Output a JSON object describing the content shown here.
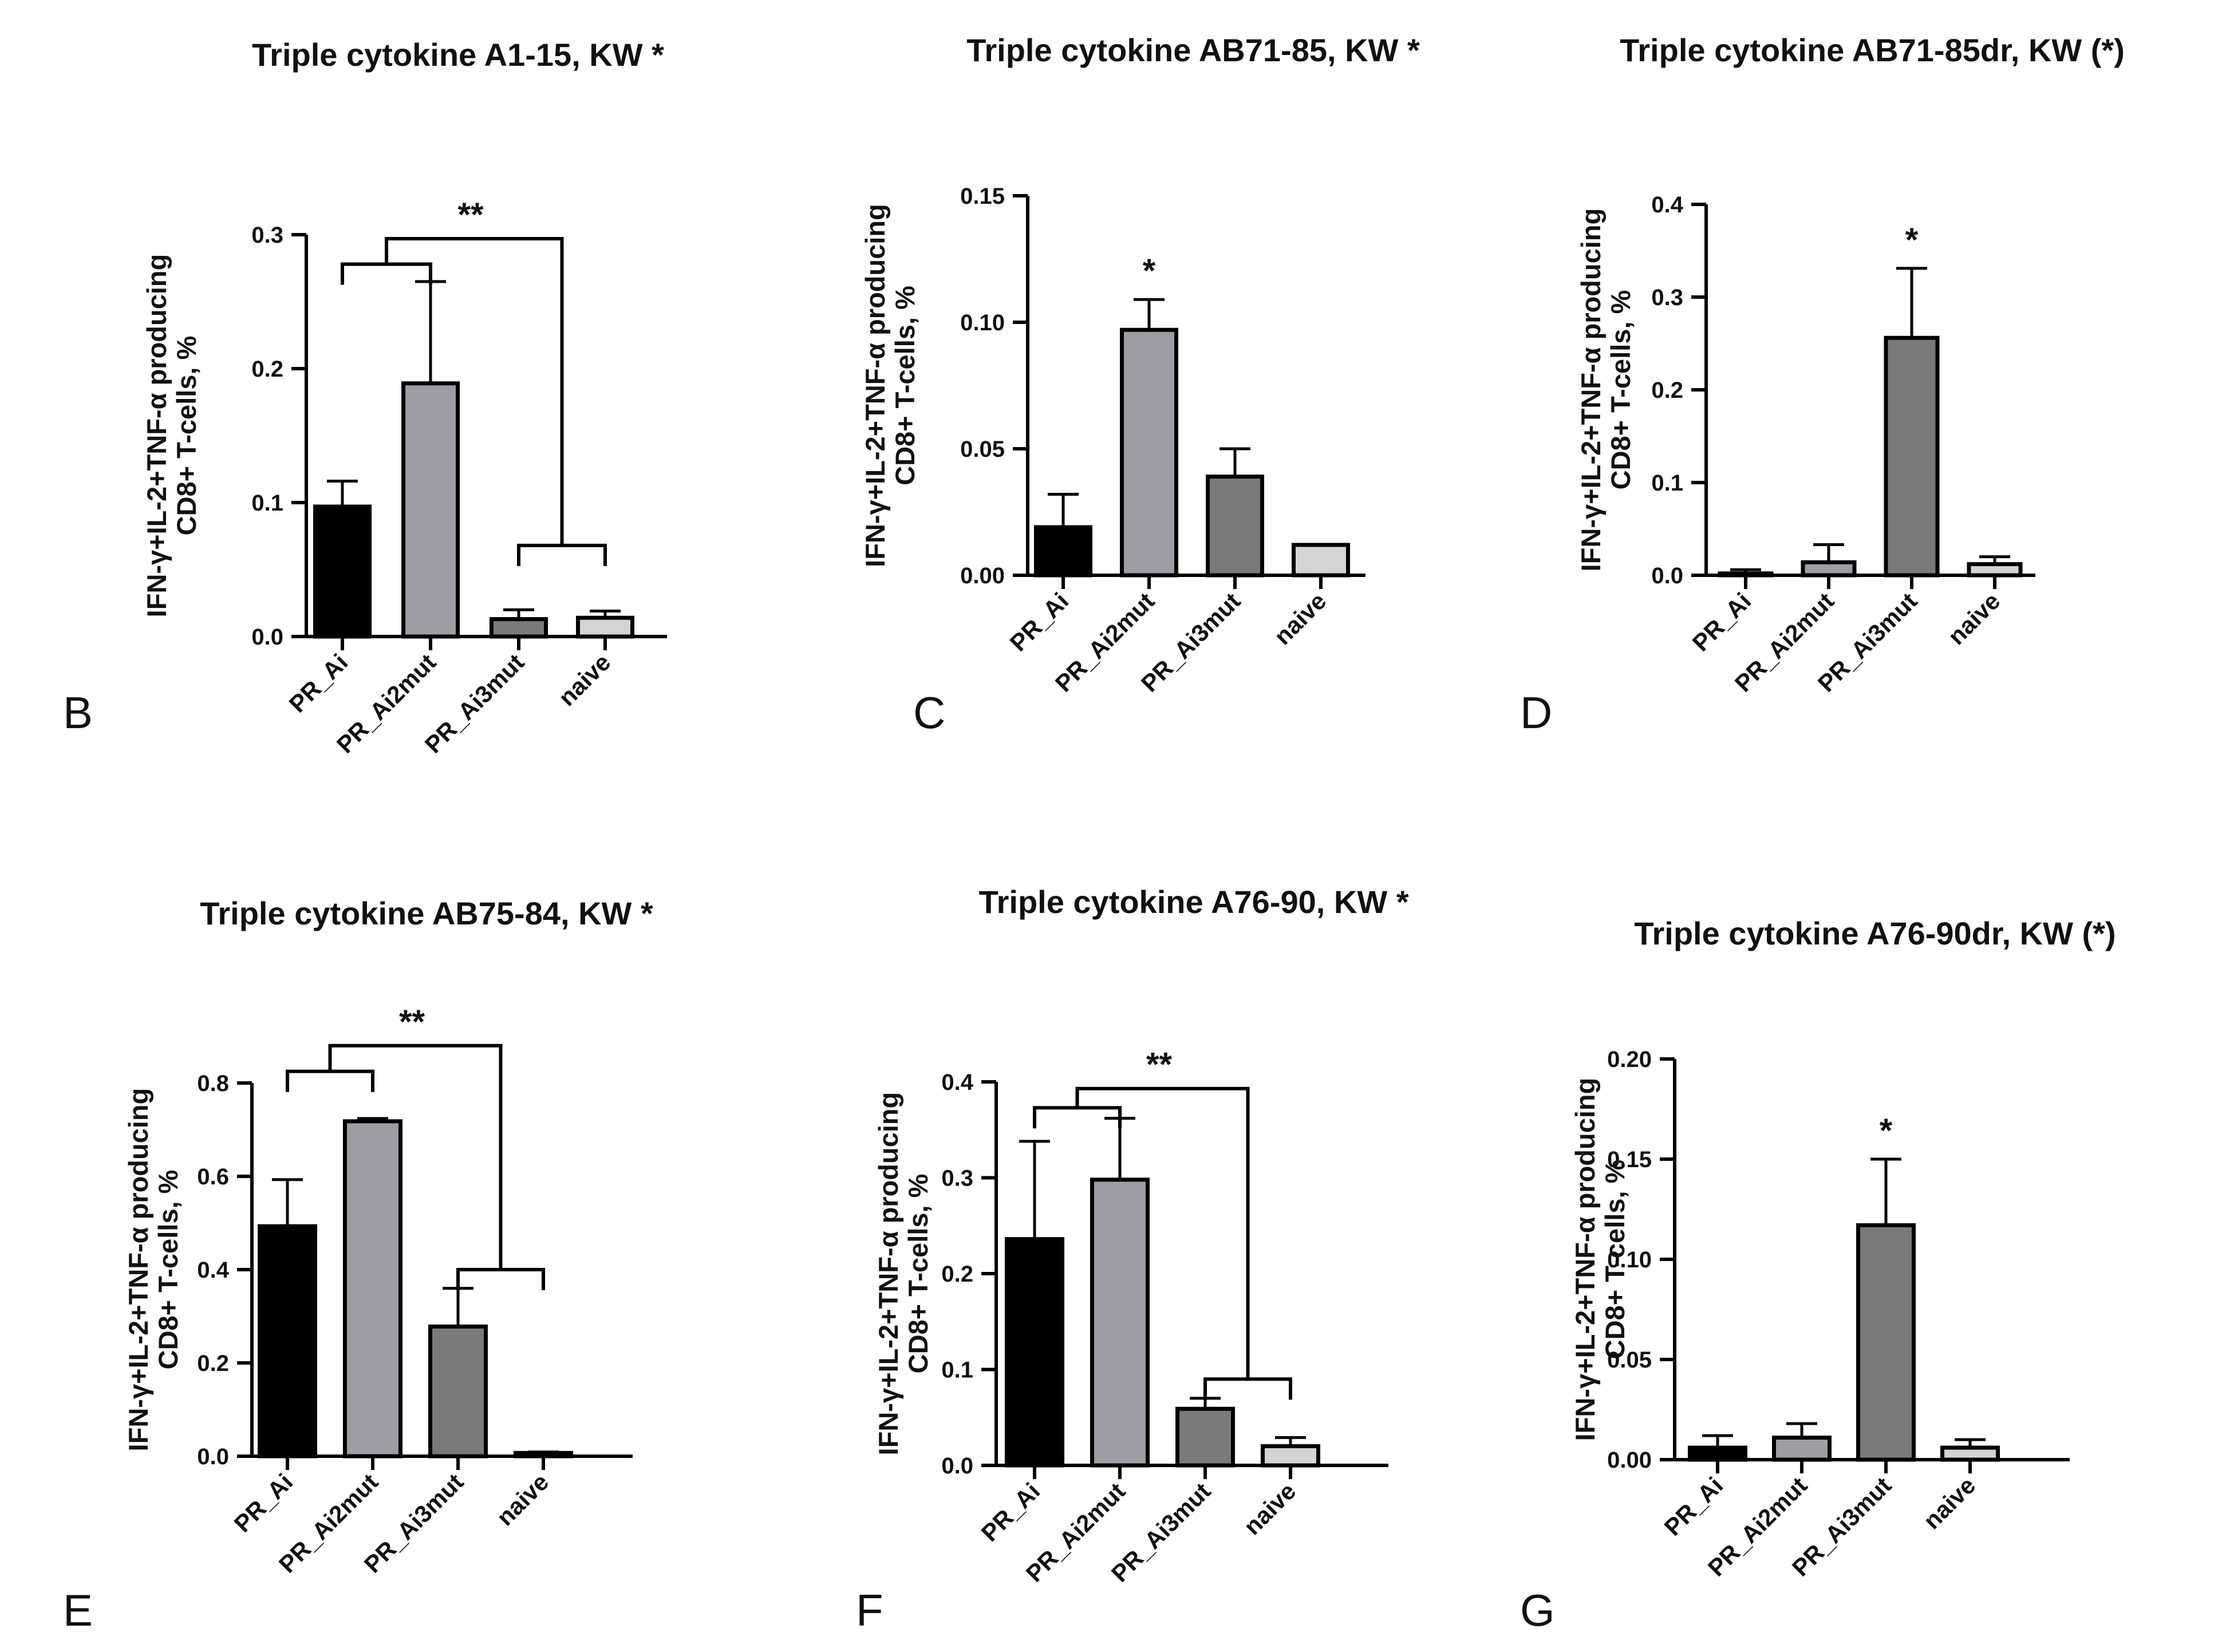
{
  "figure": {
    "y_axis_label_line1": "IFN-γ+IL-2+TNF-α producing",
    "y_axis_label_line2": "CD8+ T-cells, %"
  },
  "chart_data": [
    {
      "type": "bar",
      "panel": "B",
      "title": "Triple cytokine A1-15, KW *",
      "categories": [
        "PR_Ai",
        "PR_Ai2mut",
        "PR_Ai3mut",
        "naive"
      ],
      "values": [
        0.097,
        0.189,
        0.013,
        0.014
      ],
      "errors": [
        0.019,
        0.076,
        0.007,
        0.005
      ],
      "colors": [
        "#000000",
        "#9d9da3",
        "#7a7a7a",
        "#d4d4d4"
      ],
      "ylim": [
        0,
        0.3
      ],
      "yticks": [
        "0.0",
        "0.1",
        "0.2",
        "0.3"
      ],
      "bar_annotations": [
        "",
        "",
        "",
        ""
      ],
      "group_comparison": {
        "label": "**",
        "left": [
          0,
          1
        ],
        "right": [
          2,
          3
        ],
        "left_level": 0.278,
        "right_level": 0.068,
        "top_level": 0.297
      }
    },
    {
      "type": "bar",
      "panel": "C",
      "title": "Triple cytokine AB71-85, KW *",
      "categories": [
        "PR_Ai",
        "PR_Ai2mut",
        "PR_Ai3mut",
        "naive"
      ],
      "values": [
        0.019,
        0.097,
        0.039,
        0.012
      ],
      "errors": [
        0.013,
        0.012,
        0.011,
        0.0
      ],
      "colors": [
        "#000000",
        "#9d9da3",
        "#7a7a7a",
        "#d4d4d4"
      ],
      "ylim": [
        0,
        0.15
      ],
      "yticks": [
        "0.00",
        "0.05",
        "0.10",
        "0.15"
      ],
      "bar_annotations": [
        "",
        "*",
        "",
        ""
      ]
    },
    {
      "type": "bar",
      "panel": "D",
      "title": "Triple cytokine AB71-85dr, KW (*)",
      "categories": [
        "PR_Ai",
        "PR_Ai2mut",
        "PR_Ai3mut",
        "naive"
      ],
      "values": [
        0.002,
        0.014,
        0.256,
        0.012
      ],
      "errors": [
        0.004,
        0.019,
        0.075,
        0.008
      ],
      "colors": [
        "#000000",
        "#9d9da3",
        "#7a7a7a",
        "#d4d4d4"
      ],
      "ylim": [
        0,
        0.4
      ],
      "yticks": [
        "0.0",
        "0.1",
        "0.2",
        "0.3",
        "0.4"
      ],
      "bar_annotations": [
        "",
        "",
        "*",
        ""
      ]
    },
    {
      "type": "bar",
      "panel": "E",
      "title": "Triple cytokine AB75-84, KW *",
      "categories": [
        "PR_Ai",
        "PR_Ai2mut",
        "PR_Ai3mut",
        "naive"
      ],
      "values": [
        0.493,
        0.718,
        0.278,
        0.007
      ],
      "errors": [
        0.1,
        0.006,
        0.082,
        0.002
      ],
      "colors": [
        "#000000",
        "#9d9da3",
        "#7a7a7a",
        "#d4d4d4"
      ],
      "ylim": [
        0,
        0.8
      ],
      "yticks": [
        "0.0",
        "0.2",
        "0.4",
        "0.6",
        "0.8"
      ],
      "bar_annotations": [
        "",
        "",
        "",
        ""
      ],
      "group_comparison": {
        "label": "**",
        "left": [
          0,
          1
        ],
        "right": [
          2,
          3
        ],
        "left_level": 0.825,
        "right_level": 0.4,
        "top_level": 0.88
      }
    },
    {
      "type": "bar",
      "panel": "F",
      "title": "Triple cytokine A76-90, KW *",
      "categories": [
        "PR_Ai",
        "PR_Ai2mut",
        "PR_Ai3mut",
        "naive"
      ],
      "values": [
        0.236,
        0.298,
        0.059,
        0.02
      ],
      "errors": [
        0.102,
        0.064,
        0.011,
        0.009
      ],
      "colors": [
        "#000000",
        "#9d9da3",
        "#7a7a7a",
        "#d4d4d4"
      ],
      "ylim": [
        0,
        0.4
      ],
      "yticks": [
        "0.0",
        "0.1",
        "0.2",
        "0.3",
        "0.4"
      ],
      "bar_annotations": [
        "",
        "",
        "",
        ""
      ],
      "group_comparison": {
        "label": "**",
        "left": [
          0,
          1
        ],
        "right": [
          2,
          3
        ],
        "left_level": 0.373,
        "right_level": 0.09,
        "top_level": 0.393
      }
    },
    {
      "type": "bar",
      "panel": "G",
      "title": "Triple cytokine A76-90dr, KW (*)",
      "categories": [
        "PR_Ai",
        "PR_Ai2mut",
        "PR_Ai3mut",
        "naive"
      ],
      "values": [
        0.006,
        0.011,
        0.117,
        0.006
      ],
      "errors": [
        0.006,
        0.007,
        0.033,
        0.004
      ],
      "colors": [
        "#000000",
        "#9d9da3",
        "#7a7a7a",
        "#d4d4d4"
      ],
      "ylim": [
        0,
        0.2
      ],
      "yticks": [
        "0.00",
        "0.05",
        "0.10",
        "0.15",
        "0.20"
      ],
      "bar_annotations": [
        "",
        "",
        "*",
        ""
      ]
    }
  ]
}
